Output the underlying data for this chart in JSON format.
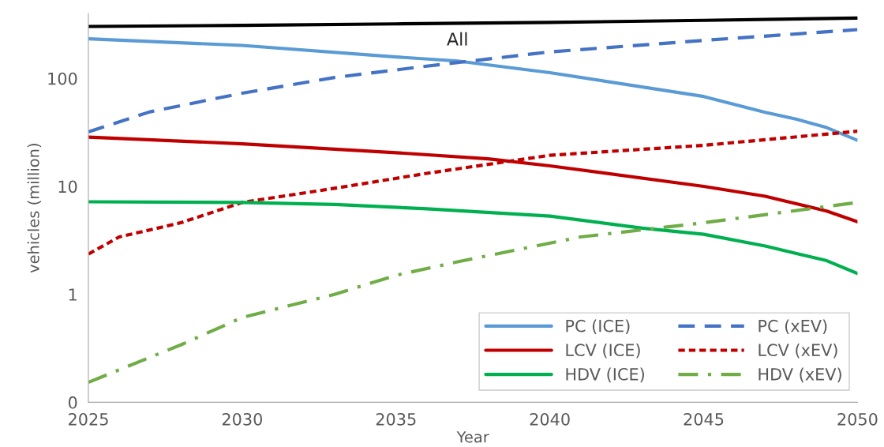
{
  "chart_data": {
    "type": "line",
    "xlabel": "Year",
    "ylabel": "vehicles (million)",
    "log": "y",
    "grid": false,
    "legend": "bottom right",
    "xlim": [
      2025,
      2050
    ],
    "xticks": [
      2025,
      2030,
      2035,
      2040,
      2045,
      2050
    ],
    "ylim": [
      0.1,
      400
    ],
    "yticks": [
      {
        "value": 0.1,
        "label": "0"
      },
      1,
      10,
      100
    ],
    "annotations": [
      "All"
    ],
    "series": [
      {
        "color": "#000000",
        "line_style": "solid",
        "x": [
          2025,
          2030,
          2035,
          2040,
          2045,
          2050
        ],
        "values": [
          303,
          310,
          320,
          330,
          345,
          362
        ]
      },
      {
        "name": "PC (ICE)",
        "color": "#5b9bd5",
        "line_style": "solid",
        "x": [
          2025,
          2030,
          2035,
          2037,
          2040,
          2045,
          2047,
          2048,
          2049,
          2050
        ],
        "values": [
          233,
          202,
          158,
          145,
          113,
          68,
          48.5,
          42,
          35,
          26.7
        ]
      },
      {
        "name": "PC (xEV)",
        "color": "#4472c4",
        "line_style": "dashed",
        "x": [
          2025,
          2027,
          2030,
          2033,
          2036,
          2040,
          2045,
          2050
        ],
        "values": [
          32,
          49,
          73,
          102,
          130,
          176,
          225,
          283
        ]
      },
      {
        "name": "LCV (ICE)",
        "color": "#c00000",
        "line_style": "solid",
        "x": [
          2025,
          2030,
          2035,
          2038,
          2040,
          2045,
          2047,
          2049,
          2050
        ],
        "values": [
          28.6,
          24.8,
          20.5,
          18,
          15.5,
          10,
          8.1,
          5.9,
          4.7
        ]
      },
      {
        "name": "LCV (xEV)",
        "color": "#c00000",
        "line_style": "dotted",
        "x": [
          2025,
          2026,
          2028,
          2030,
          2033,
          2036,
          2040,
          2045,
          2050
        ],
        "values": [
          2.36,
          3.4,
          4.6,
          7.1,
          9.6,
          13.2,
          19.4,
          24,
          32.4
        ]
      },
      {
        "name": "HDV (ICE)",
        "color": "#00b050",
        "line_style": "solid",
        "x": [
          2025,
          2030,
          2033,
          2036,
          2040,
          2043,
          2045,
          2047,
          2049,
          2050
        ],
        "values": [
          7.2,
          7.1,
          6.8,
          6.2,
          5.3,
          4.1,
          3.6,
          2.8,
          2.05,
          1.56
        ]
      },
      {
        "name": "HDV (xEV)",
        "color": "#70ad47",
        "line_style": "dashdot",
        "x": [
          2025,
          2026,
          2028,
          2030,
          2033,
          2035,
          2037,
          2041,
          2045,
          2050
        ],
        "values": [
          0.153,
          0.2,
          0.34,
          0.61,
          1.0,
          1.5,
          2.0,
          3.4,
          4.6,
          7.1
        ]
      }
    ]
  }
}
